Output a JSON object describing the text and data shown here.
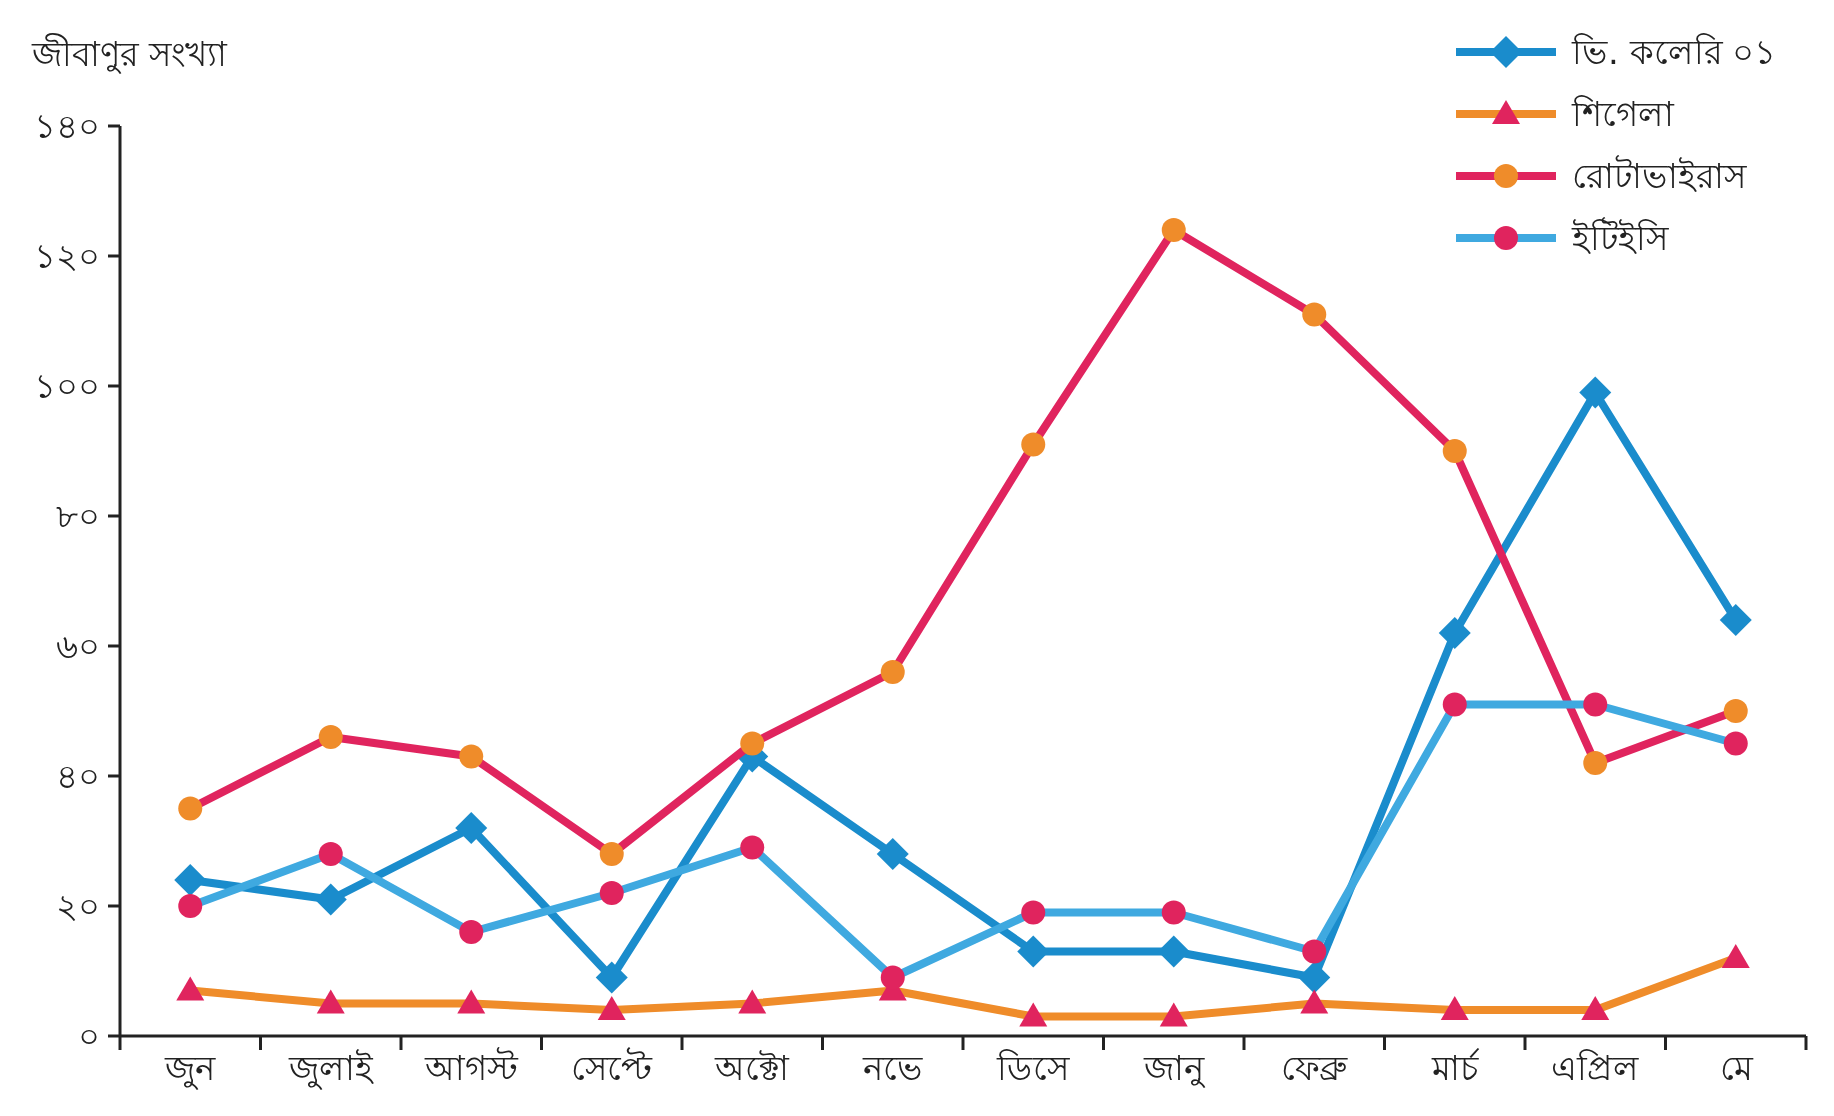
{
  "chart_data": {
    "type": "line",
    "ylabel": "জীবাণুর সংখ্যা",
    "categories": [
      "জুন",
      "জুলাই",
      "আগস্ট",
      "সেপ্টে",
      "অক্টো",
      "নভে",
      "ডিসে",
      "জানু",
      "ফেব্রু",
      "মার্চ",
      "এপ্রিল",
      "মে"
    ],
    "ylim": [
      0,
      140
    ],
    "yticks": [
      {
        "value": 0,
        "label": "০"
      },
      {
        "value": 20,
        "label": "২০"
      },
      {
        "value": 40,
        "label": "৪০"
      },
      {
        "value": 60,
        "label": "৬০"
      },
      {
        "value": 80,
        "label": "৮০"
      },
      {
        "value": 100,
        "label": "১০০"
      },
      {
        "value": 120,
        "label": "১২০"
      },
      {
        "value": 140,
        "label": "১৪০"
      }
    ],
    "grid": false,
    "legend": "top right",
    "line_style": "solid",
    "series": [
      {
        "name": "ভি. কলেরি ০১",
        "color": "#1a8ccc",
        "marker": "diamond",
        "colors": [
          "#1a8ccc",
          "#1a8ccc",
          "#1a8ccc",
          "#1a8ccc",
          "#1a8ccc",
          "#1a8ccc",
          "#1a8ccc",
          "#1a8ccc",
          "#1a8ccc",
          "#1a8ccc",
          "#1a8ccc",
          "#1a8ccc"
        ],
        "values": [
          24,
          21,
          32,
          9,
          43,
          28,
          13,
          13,
          9,
          62,
          99,
          64
        ]
      },
      {
        "name": "শিগেলা",
        "color": "#ef8c2a",
        "marker": "triangle",
        "colors": [
          "#e0245e",
          "#e0245e",
          "#e0245e",
          "#e0245e",
          "#e0245e",
          "#e0245e",
          "#e0245e",
          "#e0245e",
          "#e0245e",
          "#e0245e",
          "#e0245e",
          "#e0245e"
        ],
        "values": [
          7,
          5,
          5,
          4,
          5,
          7,
          3,
          3,
          5,
          4,
          4,
          12
        ]
      },
      {
        "name": "রোটাভাইরাস",
        "color": "#e0245e",
        "marker": "circle",
        "colors": [
          "#ef8c2a",
          "#ef8c2a",
          "#ef8c2a",
          "#ef8c2a",
          "#ef8c2a",
          "#ef8c2a",
          "#ef8c2a",
          "#ef8c2a",
          "#ef8c2a",
          "#ef8c2a",
          "#ef8c2a",
          "#ef8c2a"
        ],
        "values": [
          35,
          46,
          43,
          28,
          45,
          56,
          91,
          124,
          111,
          90,
          42,
          50
        ]
      },
      {
        "name": "ইটিইসি",
        "color": "#3fa9e0",
        "marker": "circle",
        "colors": [
          "#e0245e",
          "#e0245e",
          "#e0245e",
          "#e0245e",
          "#e0245e",
          "#e0245e",
          "#e0245e",
          "#e0245e",
          "#e0245e",
          "#e0245e",
          "#e0245e",
          "#e0245e"
        ],
        "values": [
          20,
          28,
          16,
          22,
          29,
          9,
          19,
          19,
          13,
          51,
          51,
          45
        ]
      }
    ]
  }
}
